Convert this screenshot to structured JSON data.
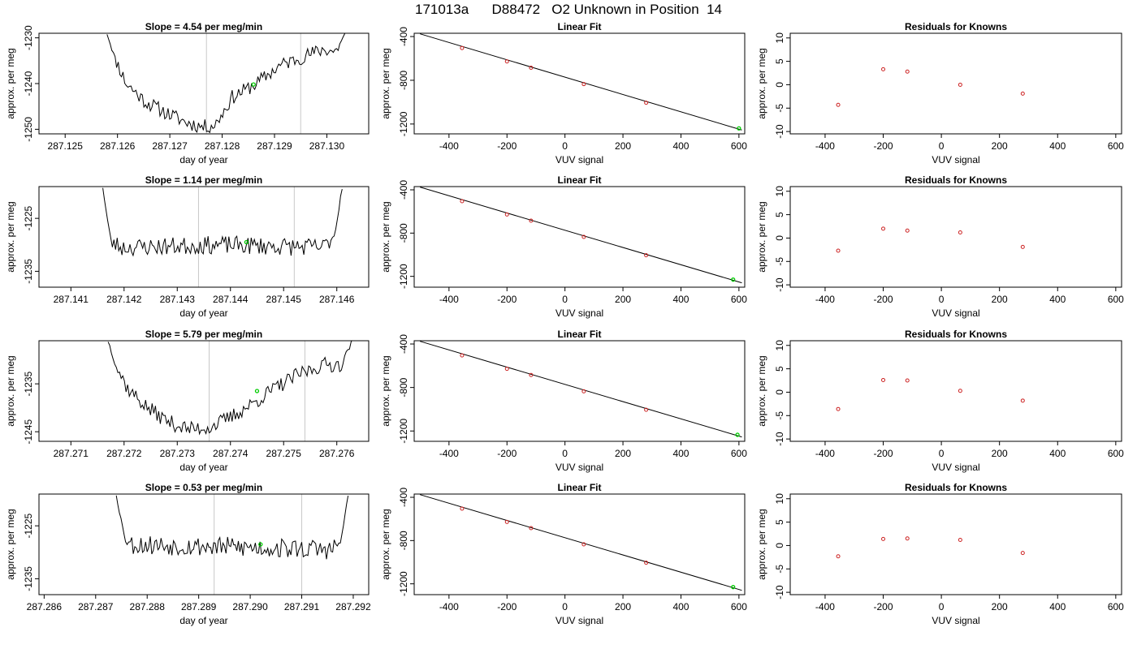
{
  "figure": {
    "title": "171013a      D88472   O2 Unknown in Position  14"
  },
  "colors": {
    "trace": "#000000",
    "point": "#00cc00",
    "residual": "#cc2222",
    "marker": "#c8c8c8"
  },
  "chart_data": [
    {
      "type": "line",
      "title": "Slope =  4.54  per meg/min",
      "xlabel": "day of year",
      "ylabel": "approx. per meg",
      "xlim": [
        287.1245,
        287.1308
      ],
      "ylim": [
        -1251,
        -1229
      ],
      "xticks": [
        287.125,
        287.126,
        287.127,
        287.128,
        287.129,
        287.13
      ],
      "xtick_labels": [
        "287.125",
        "287.126",
        "287.127",
        "287.128",
        "287.129",
        "287.130"
      ],
      "yticks": [
        -1250,
        -1240,
        -1230
      ],
      "ytick_labels": [
        "-1250",
        "-1240",
        "-1230"
      ],
      "markers": [
        287.1277,
        287.1295
      ],
      "point": [
        287.1286,
        -1240.2
      ],
      "trace": {
        "start": 287.1258,
        "end": 287.1304,
        "anchors": [
          [
            0,
            -1229
          ],
          [
            0.03,
            -1234
          ],
          [
            0.08,
            -1240
          ],
          [
            0.16,
            -1244
          ],
          [
            0.25,
            -1246.5
          ],
          [
            0.33,
            -1248.5
          ],
          [
            0.4,
            -1249.5
          ],
          [
            0.45,
            -1249
          ],
          [
            0.52,
            -1243
          ],
          [
            0.62,
            -1240
          ],
          [
            0.72,
            -1236
          ],
          [
            0.82,
            -1234
          ],
          [
            0.9,
            -1232.5
          ],
          [
            0.95,
            -1233
          ],
          [
            1,
            -1228
          ]
        ],
        "amp": 1.6,
        "n": 150,
        "seed": 11
      }
    },
    {
      "type": "scatter",
      "title": "Linear Fit",
      "xlabel": "VUV signal",
      "ylabel": "approx. per meg",
      "xlim": [
        -520,
        620
      ],
      "ylim": [
        -1290,
        -370
      ],
      "xticks": [
        -400,
        -200,
        0,
        200,
        400,
        600
      ],
      "xtick_labels": [
        "-400",
        "-200",
        "0",
        "200",
        "400",
        "600"
      ],
      "yticks": [
        -1200,
        -800,
        -400
      ],
      "ytick_labels": [
        "-1200",
        "-800",
        "-400"
      ],
      "line": [
        [
          -500,
          -375
        ],
        [
          610,
          -1255
        ]
      ],
      "knowns": [
        [
          -355,
          -505
        ],
        [
          -200,
          -628
        ],
        [
          -117,
          -685
        ],
        [
          65,
          -835
        ],
        [
          280,
          -1005
        ]
      ],
      "unknown": [
        600,
        -1240
      ]
    },
    {
      "type": "scatter",
      "title": "Residuals for Knowns",
      "xlabel": "VUV signal",
      "ylabel": "approx. per meg",
      "xlim": [
        -520,
        620
      ],
      "ylim": [
        -10.5,
        11
      ],
      "xticks": [
        -400,
        -200,
        0,
        200,
        400,
        600
      ],
      "xtick_labels": [
        "-400",
        "-200",
        "0",
        "200",
        "400",
        "600"
      ],
      "yticks": [
        -10,
        -5,
        0,
        5,
        10
      ],
      "ytick_labels": [
        "-10",
        "-5",
        "0",
        "5",
        "10"
      ],
      "residuals": [
        [
          -355,
          -4.3
        ],
        [
          -200,
          3.3
        ],
        [
          -117,
          2.8
        ],
        [
          65,
          0.0
        ],
        [
          280,
          -1.9
        ]
      ]
    },
    {
      "type": "line",
      "title": "Slope =  1.14  per meg/min",
      "xlabel": "day of year",
      "ylabel": "approx. per meg",
      "xlim": [
        287.1404,
        287.1466
      ],
      "ylim": [
        -1238,
        -1219
      ],
      "xticks": [
        287.141,
        287.142,
        287.143,
        287.144,
        287.145,
        287.146
      ],
      "xtick_labels": [
        "287.141",
        "287.142",
        "287.143",
        "287.144",
        "287.145",
        "287.146"
      ],
      "yticks": [
        -1235,
        -1225
      ],
      "ytick_labels": [
        "-1235",
        "-1225"
      ],
      "markers": [
        287.1434,
        287.1452
      ],
      "point": [
        287.1443,
        -1229.5
      ],
      "trace": {
        "start": 287.1416,
        "end": 287.1461,
        "anchors": [
          [
            0,
            -1219
          ],
          [
            0.015,
            -1224
          ],
          [
            0.035,
            -1229.5
          ],
          [
            0.08,
            -1230.5
          ],
          [
            0.5,
            -1230
          ],
          [
            0.92,
            -1230.5
          ],
          [
            0.97,
            -1228
          ],
          [
            1,
            -1219
          ]
        ],
        "amp": 1.7,
        "n": 150,
        "seed": 23
      }
    },
    {
      "type": "scatter",
      "title": "Linear Fit",
      "xlabel": "VUV signal",
      "ylabel": "approx. per meg",
      "xlim": [
        -520,
        620
      ],
      "ylim": [
        -1300,
        -370
      ],
      "xticks": [
        -400,
        -200,
        0,
        200,
        400,
        600
      ],
      "xtick_labels": [
        "-400",
        "-200",
        "0",
        "200",
        "400",
        "600"
      ],
      "yticks": [
        -1200,
        -800,
        -400
      ],
      "ytick_labels": [
        "-1200",
        "-800",
        "-400"
      ],
      "line": [
        [
          -500,
          -375
        ],
        [
          610,
          -1260
        ]
      ],
      "knowns": [
        [
          -355,
          -505
        ],
        [
          -200,
          -628
        ],
        [
          -117,
          -685
        ],
        [
          65,
          -835
        ],
        [
          280,
          -1005
        ]
      ],
      "unknown": [
        580,
        -1230
      ]
    },
    {
      "type": "scatter",
      "title": "Residuals for Knowns",
      "xlabel": "VUV signal",
      "ylabel": "approx. per meg",
      "xlim": [
        -520,
        620
      ],
      "ylim": [
        -10.5,
        11
      ],
      "xticks": [
        -400,
        -200,
        0,
        200,
        400,
        600
      ],
      "xtick_labels": [
        "-400",
        "-200",
        "0",
        "200",
        "400",
        "600"
      ],
      "yticks": [
        -10,
        -5,
        0,
        5,
        10
      ],
      "ytick_labels": [
        "-10",
        "-5",
        "0",
        "5",
        "10"
      ],
      "residuals": [
        [
          -355,
          -2.7
        ],
        [
          -200,
          2.0
        ],
        [
          -117,
          1.6
        ],
        [
          65,
          1.2
        ],
        [
          280,
          -1.9
        ]
      ]
    },
    {
      "type": "line",
      "title": "Slope =  5.79  per meg/min",
      "xlabel": "day of year",
      "ylabel": "approx. per meg",
      "xlim": [
        287.2704,
        287.2766
      ],
      "ylim": [
        -1247,
        -1226
      ],
      "xticks": [
        287.271,
        287.272,
        287.273,
        287.274,
        287.275,
        287.276
      ],
      "xtick_labels": [
        "287.271",
        "287.272",
        "287.273",
        "287.274",
        "287.275",
        "287.276"
      ],
      "yticks": [
        -1245,
        -1235
      ],
      "ytick_labels": [
        "-1245",
        "-1235"
      ],
      "markers": [
        287.2736,
        287.2754
      ],
      "point": [
        287.2745,
        -1236.5
      ],
      "trace": {
        "start": 287.2717,
        "end": 287.2763,
        "anchors": [
          [
            0,
            -1226
          ],
          [
            0.03,
            -1231
          ],
          [
            0.08,
            -1236
          ],
          [
            0.16,
            -1240
          ],
          [
            0.25,
            -1243
          ],
          [
            0.33,
            -1244.5
          ],
          [
            0.42,
            -1244
          ],
          [
            0.5,
            -1242
          ],
          [
            0.58,
            -1239.5
          ],
          [
            0.68,
            -1236
          ],
          [
            0.78,
            -1233
          ],
          [
            0.88,
            -1231
          ],
          [
            0.95,
            -1231
          ],
          [
            1,
            -1226
          ]
        ],
        "amp": 1.6,
        "n": 150,
        "seed": 37
      }
    },
    {
      "type": "scatter",
      "title": "Linear Fit",
      "xlabel": "VUV signal",
      "ylabel": "approx. per meg",
      "xlim": [
        -520,
        620
      ],
      "ylim": [
        -1295,
        -370
      ],
      "xticks": [
        -400,
        -200,
        0,
        200,
        400,
        600
      ],
      "xtick_labels": [
        "-400",
        "-200",
        "0",
        "200",
        "400",
        "600"
      ],
      "yticks": [
        -1200,
        -800,
        -400
      ],
      "ytick_labels": [
        "-1200",
        "-800",
        "-400"
      ],
      "line": [
        [
          -500,
          -375
        ],
        [
          610,
          -1255
        ]
      ],
      "knowns": [
        [
          -355,
          -505
        ],
        [
          -200,
          -628
        ],
        [
          -117,
          -685
        ],
        [
          65,
          -835
        ],
        [
          280,
          -1005
        ]
      ],
      "unknown": [
        595,
        -1235
      ]
    },
    {
      "type": "scatter",
      "title": "Residuals for Knowns",
      "xlabel": "VUV signal",
      "ylabel": "approx. per meg",
      "xlim": [
        -520,
        620
      ],
      "ylim": [
        -10.5,
        11
      ],
      "xticks": [
        -400,
        -200,
        0,
        200,
        400,
        600
      ],
      "xtick_labels": [
        "-400",
        "-200",
        "0",
        "200",
        "400",
        "600"
      ],
      "yticks": [
        -10,
        -5,
        0,
        5,
        10
      ],
      "ytick_labels": [
        "-10",
        "-5",
        "0",
        "5",
        "10"
      ],
      "residuals": [
        [
          -355,
          -3.6
        ],
        [
          -200,
          2.6
        ],
        [
          -117,
          2.5
        ],
        [
          65,
          0.3
        ],
        [
          280,
          -1.8
        ]
      ]
    },
    {
      "type": "line",
      "title": "Slope =  0.53  per meg/min",
      "xlabel": "day of year",
      "ylabel": "approx. per meg",
      "xlim": [
        287.2859,
        287.2923
      ],
      "ylim": [
        -1238,
        -1219
      ],
      "xticks": [
        287.286,
        287.287,
        287.288,
        287.289,
        287.29,
        287.291,
        287.292
      ],
      "xtick_labels": [
        "287.286",
        "287.287",
        "287.288",
        "287.289",
        "287.290",
        "287.291",
        "287.292"
      ],
      "yticks": [
        -1235,
        -1225
      ],
      "ytick_labels": [
        "-1235",
        "-1225"
      ],
      "markers": [
        287.2893,
        287.291
      ],
      "point": [
        287.2902,
        -1228.5
      ],
      "trace": {
        "start": 287.2874,
        "end": 287.2919,
        "anchors": [
          [
            0,
            -1219
          ],
          [
            0.03,
            -1226
          ],
          [
            0.06,
            -1228.5
          ],
          [
            0.5,
            -1229
          ],
          [
            0.93,
            -1229.5
          ],
          [
            0.97,
            -1228
          ],
          [
            1,
            -1219
          ]
        ],
        "amp": 1.9,
        "n": 150,
        "seed": 53
      }
    },
    {
      "type": "scatter",
      "title": "Linear Fit",
      "xlabel": "VUV signal",
      "ylabel": "approx. per meg",
      "xlim": [
        -520,
        620
      ],
      "ylim": [
        -1300,
        -370
      ],
      "xticks": [
        -400,
        -200,
        0,
        200,
        400,
        600
      ],
      "xtick_labels": [
        "-400",
        "-200",
        "0",
        "200",
        "400",
        "600"
      ],
      "yticks": [
        -1200,
        -800,
        -400
      ],
      "ytick_labels": [
        "-1200",
        "-800",
        "-400"
      ],
      "line": [
        [
          -500,
          -375
        ],
        [
          610,
          -1260
        ]
      ],
      "knowns": [
        [
          -355,
          -505
        ],
        [
          -200,
          -628
        ],
        [
          -117,
          -685
        ],
        [
          65,
          -835
        ],
        [
          280,
          -1005
        ]
      ],
      "unknown": [
        580,
        -1230
      ]
    },
    {
      "type": "scatter",
      "title": "Residuals for Knowns",
      "xlabel": "VUV signal",
      "ylabel": "approx. per meg",
      "xlim": [
        -520,
        620
      ],
      "ylim": [
        -10.5,
        11
      ],
      "xticks": [
        -400,
        -200,
        0,
        200,
        400,
        600
      ],
      "xtick_labels": [
        "-400",
        "-200",
        "0",
        "200",
        "400",
        "600"
      ],
      "yticks": [
        -10,
        -5,
        0,
        5,
        10
      ],
      "ytick_labels": [
        "-10",
        "-5",
        "0",
        "5",
        "10"
      ],
      "residuals": [
        [
          -355,
          -2.3
        ],
        [
          -200,
          1.4
        ],
        [
          -117,
          1.5
        ],
        [
          65,
          1.2
        ],
        [
          280,
          -1.6
        ]
      ]
    }
  ]
}
